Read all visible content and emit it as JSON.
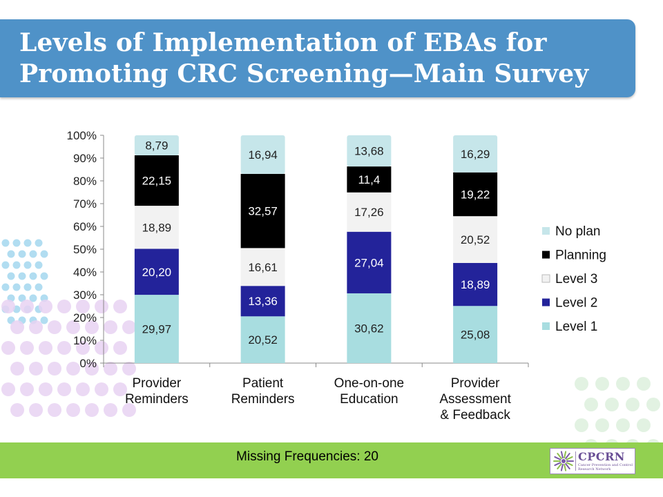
{
  "title": {
    "line1": "Levels of Implementation of EBAs for",
    "line2": "Promoting CRC Screening—Main Survey"
  },
  "footer": {
    "text": "Missing Frequencies: 20"
  },
  "logo": {
    "name": "CPCRN",
    "subtitle": "Cancer Prevention and Control Research Network"
  },
  "colors": {
    "title_banner": "#4f92c8",
    "footer_bar": "#92d050",
    "level1": "#a8dde0",
    "level2": "#23239a",
    "level3": "#f2f2f2",
    "planning": "#000000",
    "no_plan": "#c6e6ea"
  },
  "chart_data": {
    "type": "bar",
    "stacked": true,
    "percent": true,
    "categories": [
      [
        "Provider",
        "Reminders"
      ],
      [
        "Patient",
        "Reminders"
      ],
      [
        "One-on-one",
        "Education"
      ],
      [
        "Provider",
        "Assessment",
        "& Feedback"
      ]
    ],
    "series": [
      {
        "name": "Level 1",
        "color": "#a8dde0",
        "text_color": "#222222",
        "values": [
          29.97,
          20.52,
          30.62,
          25.08
        ],
        "labels": [
          "29,97",
          "20,52",
          "30,62",
          "25,08"
        ]
      },
      {
        "name": "Level 2",
        "color": "#23239a",
        "text_color": "#ffffff",
        "values": [
          20.2,
          13.36,
          27.04,
          18.89
        ],
        "labels": [
          "20,20",
          "13,36",
          "27,04",
          "18,89"
        ]
      },
      {
        "name": "Level 3",
        "color": "#f2f2f2",
        "text_color": "#222222",
        "values": [
          18.89,
          16.61,
          17.26,
          20.52
        ],
        "labels": [
          "18,89",
          "16,61",
          "17,26",
          "20,52"
        ]
      },
      {
        "name": "Planning",
        "color": "#000000",
        "text_color": "#ffffff",
        "values": [
          22.15,
          32.57,
          11.4,
          19.22
        ],
        "labels": [
          "22,15",
          "32,57",
          "11,4",
          "19,22"
        ]
      },
      {
        "name": "No plan",
        "color": "#c6e6ea",
        "text_color": "#222222",
        "values": [
          8.79,
          16.94,
          13.68,
          16.29
        ],
        "labels": [
          "8,79",
          "16,94",
          "13,68",
          "16,29"
        ]
      }
    ],
    "ylim": [
      0,
      100
    ],
    "yticks": [
      "0%",
      "10%",
      "20%",
      "30%",
      "40%",
      "50%",
      "60%",
      "70%",
      "80%",
      "90%",
      "100%"
    ],
    "legend": {
      "position": "right",
      "order": [
        "No plan",
        "Planning",
        "Level 3",
        "Level 2",
        "Level 1"
      ]
    },
    "grid": false
  }
}
